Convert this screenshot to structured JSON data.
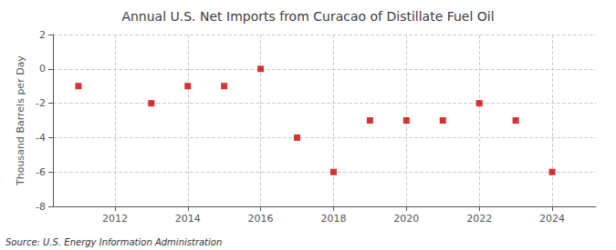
{
  "chart_data": {
    "type": "scatter",
    "title": "Annual U.S. Net Imports from Curacao of Distillate Fuel Oil",
    "ylabel": "Thousand Barrels per Day",
    "source": "Source: U.S. Energy Information Administration",
    "x": [
      2011,
      2013,
      2014,
      2015,
      2016,
      2017,
      2018,
      2019,
      2020,
      2021,
      2022,
      2023,
      2024
    ],
    "values": [
      -1,
      -2,
      -1,
      -1,
      0,
      -4,
      -6,
      -3,
      -3,
      -3,
      -2,
      -3,
      -6
    ],
    "xlim": [
      2010.3,
      2025.2
    ],
    "ylim": [
      -8,
      2
    ],
    "xticks": [
      2012,
      2014,
      2016,
      2018,
      2020,
      2022,
      2024
    ],
    "yticks": [
      -8,
      -6,
      -4,
      -2,
      0,
      2
    ],
    "color": "#cc0000",
    "marker": "square",
    "grid": true
  }
}
